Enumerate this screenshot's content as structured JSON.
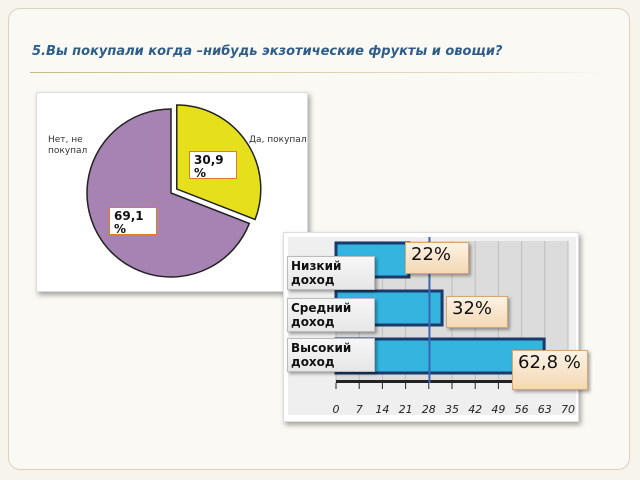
{
  "title": "5.Вы покупали когда –нибудь экзотические фрукты и овощи?",
  "chart_data": [
    {
      "type": "pie",
      "slices": [
        {
          "label": "Да, покупал",
          "value": 30.9,
          "display": "30,9 %",
          "color": "#e6e01c"
        },
        {
          "label": "Нет, не покупал",
          "value": 69.1,
          "display": "69,1 %",
          "color": "#a783b3"
        }
      ]
    },
    {
      "type": "bar",
      "orientation": "horizontal",
      "categories": [
        "Низкий доход",
        "Средний доход",
        "Высокий доход"
      ],
      "values": [
        22,
        32,
        62.8
      ],
      "display": [
        "22%",
        "32%",
        "62,8 %"
      ],
      "xticks": [
        "0",
        "7",
        "14",
        "21",
        "28",
        "35",
        "42",
        "49",
        "56",
        "63",
        "70"
      ],
      "xlim": [
        0,
        70
      ],
      "bar_color": "#33b5e0"
    }
  ]
}
